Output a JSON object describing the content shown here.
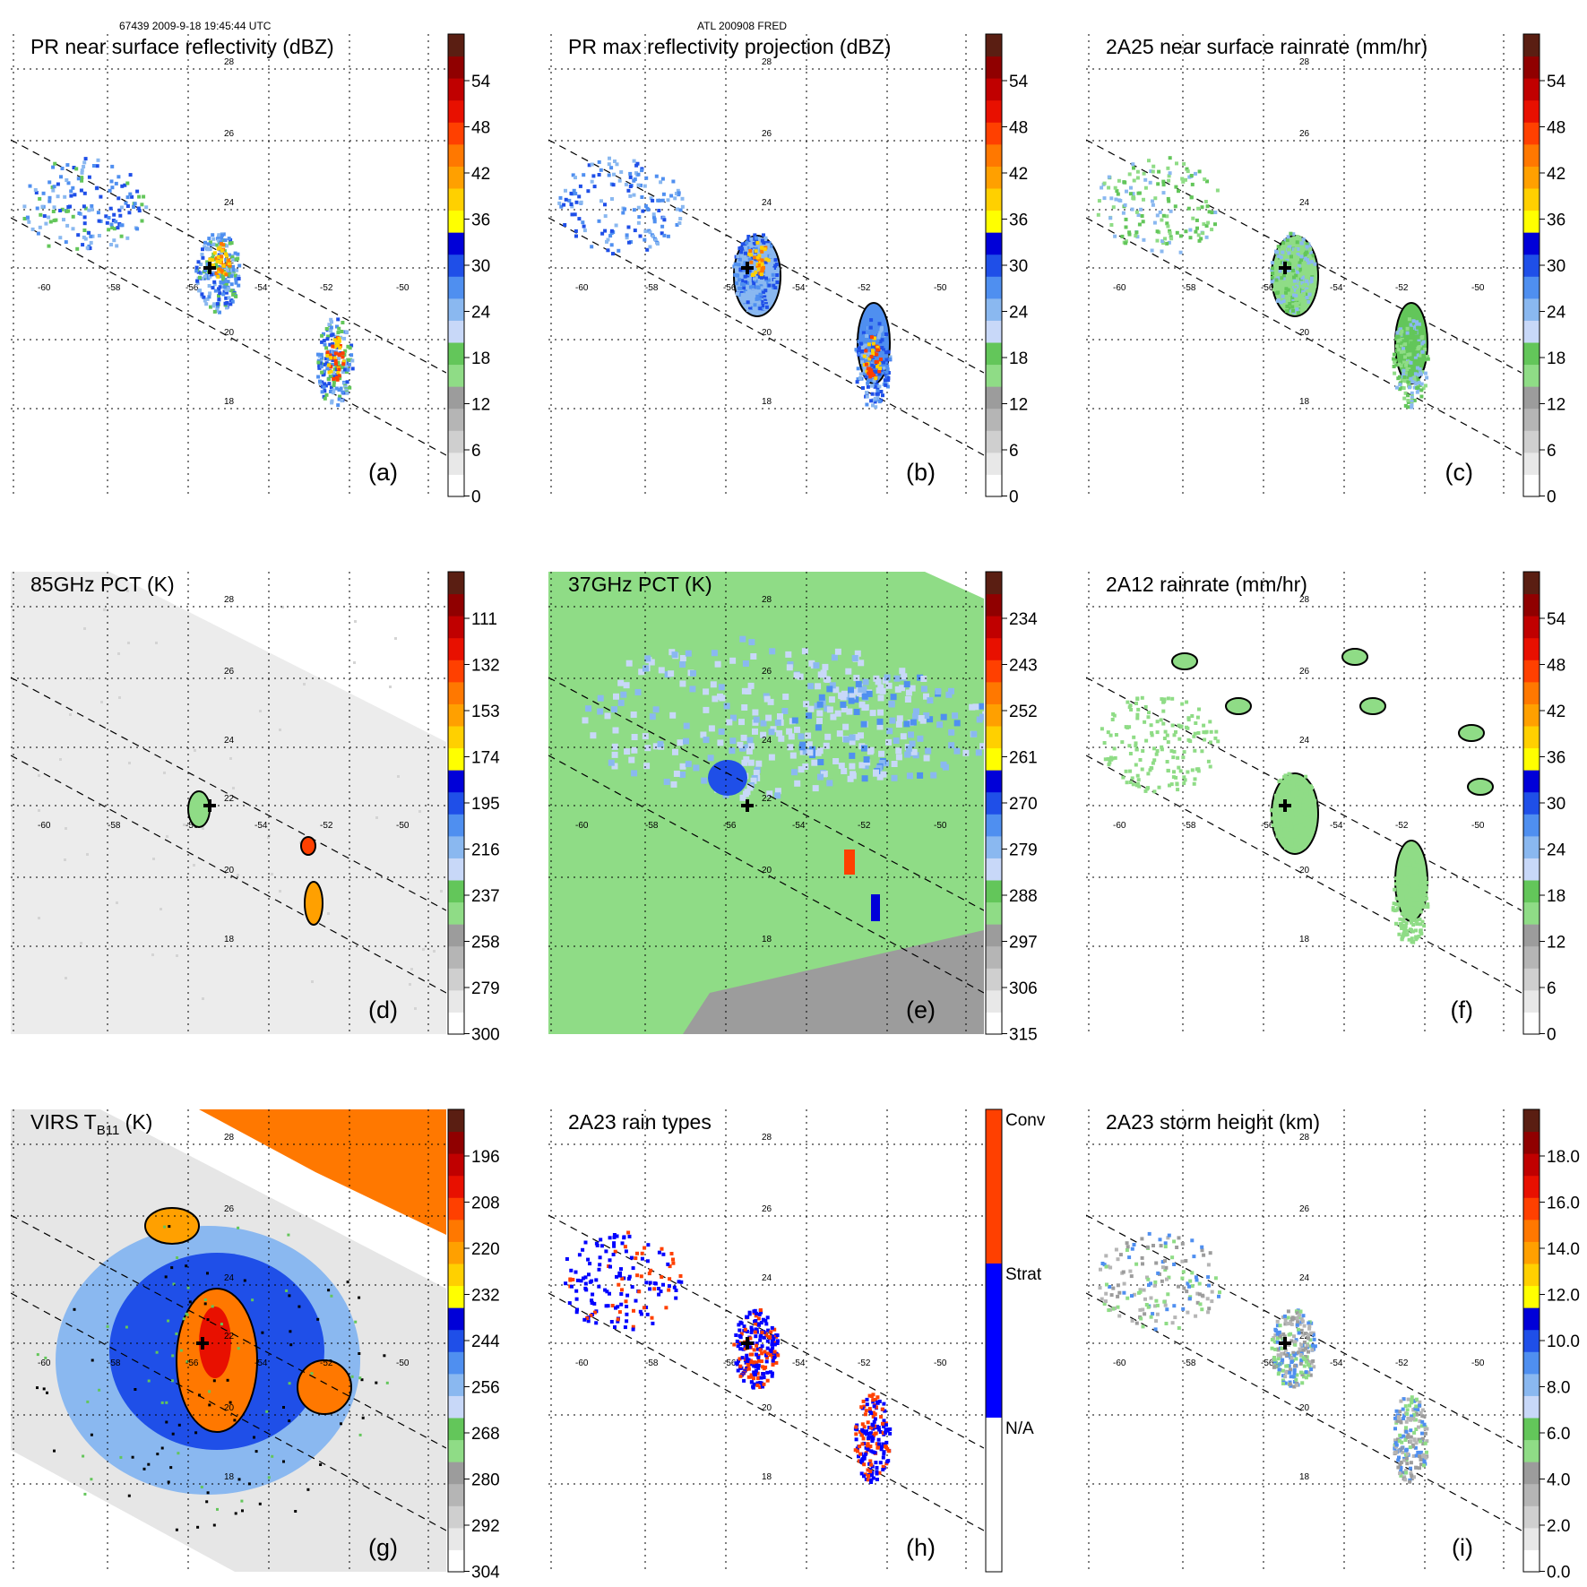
{
  "header": {
    "left": "67439 2009-9-18 19:45:44 UTC",
    "center": "ATL 200908 FRED"
  },
  "axes": {
    "lat_labels": [
      "28",
      "26",
      "24",
      "22",
      "20",
      "18"
    ],
    "lon_labels": [
      "-60",
      "-58",
      "-56",
      "-54",
      "-52",
      "-50"
    ]
  },
  "colors": {
    "colorbar": [
      "#ffffff",
      "#e8e8e8",
      "#cfcfcf",
      "#b5b5b5",
      "#9c9c9c",
      "#8fdc86",
      "#63c65a",
      "#c8d8f8",
      "#8ab8f0",
      "#4f8ff0",
      "#1f4fe8",
      "#0000d8",
      "#ffff00",
      "#ffd000",
      "#ffa000",
      "#ff7800",
      "#ff4000",
      "#e81000",
      "#c00000",
      "#900000",
      "#5a1e12"
    ],
    "rain_types": [
      "#ffffff",
      "#0000ff",
      "#ff4000"
    ],
    "center_marker": "#000000"
  },
  "panels": [
    {
      "id": "a",
      "title": "PR near surface reflectivity (dBZ)",
      "label": "(a)",
      "scale": "bar",
      "ticks": [
        "54",
        "48",
        "42",
        "36",
        "30",
        "24",
        "18",
        "12",
        "6",
        "0"
      ]
    },
    {
      "id": "b",
      "title": "PR max reflectivity projection (dBZ)",
      "label": "(b)",
      "scale": "bar",
      "ticks": [
        "54",
        "48",
        "42",
        "36",
        "30",
        "24",
        "18",
        "12",
        "6",
        "0"
      ]
    },
    {
      "id": "c",
      "title": "2A25 near surface rainrate (mm/hr)",
      "label": "(c)",
      "scale": "bar",
      "ticks": [
        "54",
        "48",
        "42",
        "36",
        "30",
        "24",
        "18",
        "12",
        "6",
        "0"
      ]
    },
    {
      "id": "d",
      "title": "85GHz PCT (K)",
      "label": "(d)",
      "scale": "bar",
      "ticks": [
        "111",
        "132",
        "153",
        "174",
        "195",
        "216",
        "237",
        "258",
        "279",
        "300"
      ]
    },
    {
      "id": "e",
      "title": "37GHz PCT (K)",
      "label": "(e)",
      "scale": "bar",
      "ticks": [
        "234",
        "243",
        "252",
        "261",
        "270",
        "279",
        "288",
        "297",
        "306",
        "315"
      ]
    },
    {
      "id": "f",
      "title": "2A12 rainrate (mm/hr)",
      "label": "(f)",
      "scale": "bar",
      "ticks": [
        "54",
        "48",
        "42",
        "36",
        "30",
        "24",
        "18",
        "12",
        "6",
        "0"
      ]
    },
    {
      "id": "g",
      "title": "VIRS T",
      "title_sub": "B11",
      "title_suffix": " (K)",
      "label": "(g)",
      "scale": "bar",
      "ticks": [
        "196",
        "208",
        "220",
        "232",
        "244",
        "256",
        "268",
        "280",
        "292",
        "304"
      ]
    },
    {
      "id": "h",
      "title": "2A23 rain types",
      "label": "(h)",
      "scale": "types",
      "ticks": [
        "Conv",
        "Strat",
        "N/A"
      ]
    },
    {
      "id": "i",
      "title": "2A23 storm height (km)",
      "label": "(i)",
      "scale": "bar",
      "ticks": [
        "18.0",
        "16.0",
        "14.0",
        "12.0",
        "10.0",
        "8.0",
        "6.0",
        "4.0",
        "2.0",
        "0.0"
      ]
    }
  ]
}
